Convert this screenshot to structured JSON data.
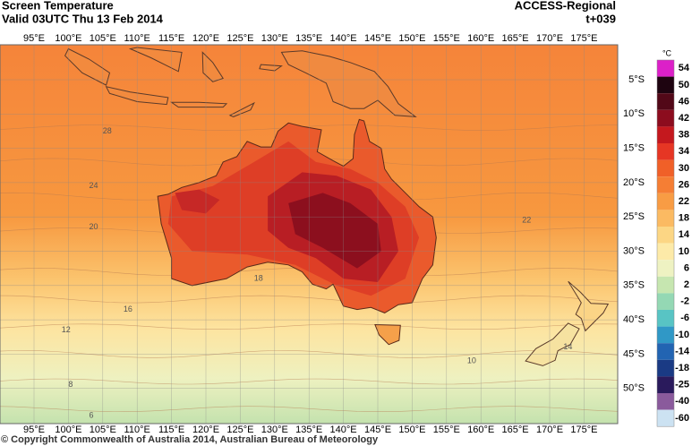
{
  "header": {
    "title": "Screen Temperature",
    "valid": "Valid 03UTC Thu 13 Feb 2014",
    "model": "ACCESS-Regional",
    "lead": "t+039"
  },
  "longitude_labels": [
    "95°E",
    "100°E",
    "105°E",
    "110°E",
    "115°E",
    "120°E",
    "125°E",
    "130°E",
    "135°E",
    "140°E",
    "145°E",
    "150°E",
    "155°E",
    "160°E",
    "165°E",
    "170°E",
    "175°E"
  ],
  "latitude_labels": [
    "5°S",
    "10°S",
    "15°S",
    "20°S",
    "25°S",
    "30°S",
    "35°S",
    "40°S",
    "45°S",
    "50°S"
  ],
  "colorbar": {
    "unit": "°C",
    "levels": [
      {
        "label": "54",
        "color": "#dc20c8"
      },
      {
        "label": "50",
        "color": "#1e0410"
      },
      {
        "label": "46",
        "color": "#520818"
      },
      {
        "label": "42",
        "color": "#8c0c1e"
      },
      {
        "label": "38",
        "color": "#c4181e"
      },
      {
        "label": "34",
        "color": "#e63624"
      },
      {
        "label": "30",
        "color": "#f06028"
      },
      {
        "label": "26",
        "color": "#f57e34"
      },
      {
        "label": "22",
        "color": "#f89c44"
      },
      {
        "label": "18",
        "color": "#fbba62"
      },
      {
        "label": "14",
        "color": "#fcd684"
      },
      {
        "label": "10",
        "color": "#fdeaa8"
      },
      {
        "label": "6",
        "color": "#eef2c2"
      },
      {
        "label": "2",
        "color": "#c6e6b0"
      },
      {
        "label": "-2",
        "color": "#94d8b4"
      },
      {
        "label": "-6",
        "color": "#58c4c4"
      },
      {
        "label": "-10",
        "color": "#3098c6"
      },
      {
        "label": "-14",
        "color": "#2264b2"
      },
      {
        "label": "-18",
        "color": "#1a3a84"
      },
      {
        "label": "-25",
        "color": "#2a1a5c"
      },
      {
        "label": "-40",
        "color": "#8a5a9c"
      },
      {
        "label": "-60",
        "color": "#cce2f2"
      }
    ]
  },
  "contour_labels": [
    "28",
    "24",
    "22",
    "20",
    "18",
    "16",
    "12",
    "14",
    "10",
    "8",
    "6"
  ],
  "copyright": "© Copyright Commonwealth of Australia 2014, Australian Bureau of Meteorology"
}
